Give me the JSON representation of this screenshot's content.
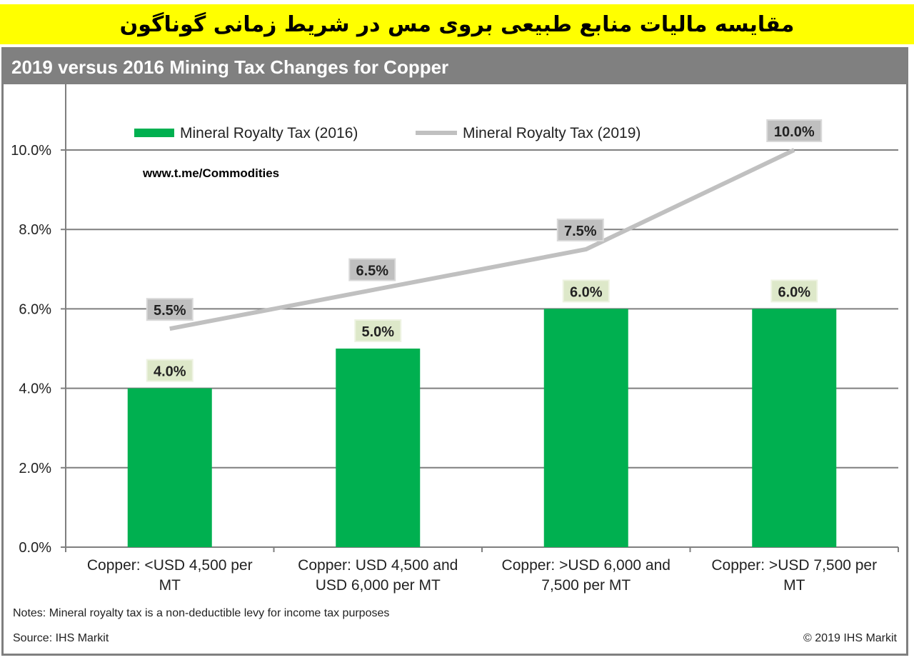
{
  "banner_title": "مقایسه مالیات منابع طبیعی بروی مس در شریط زمانی گوناگون",
  "chart_data": {
    "type": "bar",
    "title": "2019 versus 2016 Mining Tax Changes for Copper",
    "categories": [
      [
        "Copper: <USD 4,500 per",
        "MT"
      ],
      [
        "Copper: USD 4,500 and",
        "USD 6,000 per MT"
      ],
      [
        "Copper: >USD 6,000 and",
        "7,500 per MT"
      ],
      [
        "Copper: >USD 7,500 per",
        "MT"
      ]
    ],
    "series": [
      {
        "name": "Mineral Royalty Tax (2016)",
        "kind": "bar",
        "color": "#00b050",
        "values": [
          4.0,
          5.0,
          6.0,
          6.0
        ],
        "labels": [
          "4.0%",
          "5.0%",
          "6.0%",
          "6.0%"
        ]
      },
      {
        "name": "Mineral Royalty Tax (2019)",
        "kind": "line",
        "color": "#c0c0c0",
        "values": [
          5.5,
          6.5,
          7.5,
          10.0
        ],
        "labels": [
          "5.5%",
          "6.5%",
          "7.5%",
          "10.0%"
        ]
      }
    ],
    "yticks": [
      "0.0%",
      "2.0%",
      "4.0%",
      "6.0%",
      "8.0%",
      "10.0%"
    ],
    "ylim": [
      0,
      10
    ],
    "grid": true,
    "legend": "top",
    "watermark": "www.t.me/Commodities"
  },
  "notes": "Notes: Mineral royalty tax is a non-deductible levy for income tax purposes",
  "source": "Source: IHS Markit",
  "copyright": "© 2019 IHS Markit"
}
